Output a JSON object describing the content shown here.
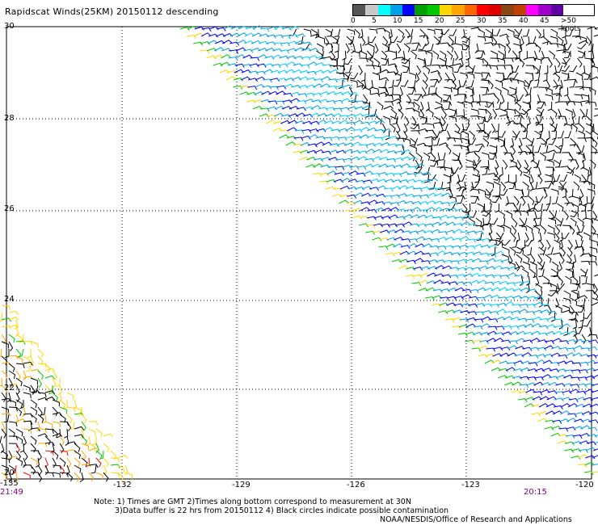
{
  "title": "Rapidscat Winds(25KM) 20150112 descending",
  "legend": {
    "colors": [
      "#555555",
      "#c8c8c8",
      "#00ffff",
      "#00a0e6",
      "#0000ff",
      "#00a000",
      "#00c800",
      "#ffd700",
      "#ffa500",
      "#ff6600",
      "#ff0000",
      "#dd0000",
      "#8b4513",
      "#c04000",
      "#ff00ff",
      "#a000c8",
      "#6000a0"
    ],
    "ticks": [
      "0",
      "5",
      "10",
      "15",
      "20",
      "25",
      "30",
      "35",
      "40",
      "45",
      ">50 knots"
    ]
  },
  "map": {
    "lat_labels": [
      "30",
      "28",
      "26",
      "24",
      "22",
      "20"
    ],
    "lon_labels": [
      "-135",
      "-132",
      "-129",
      "-126",
      "-123",
      "-120"
    ],
    "time_left": "21:49",
    "time_right": "20:15"
  },
  "notes": {
    "line1": "Note: 1) Times are GMT 2)Times along bottom correspond to measurement at 30N",
    "line2": "3)Data buffer is 22 hrs from 20150112 4) Black circles indicate possible contamination",
    "credit": "NOAA/NESDIS/Office of Research and Applications"
  }
}
